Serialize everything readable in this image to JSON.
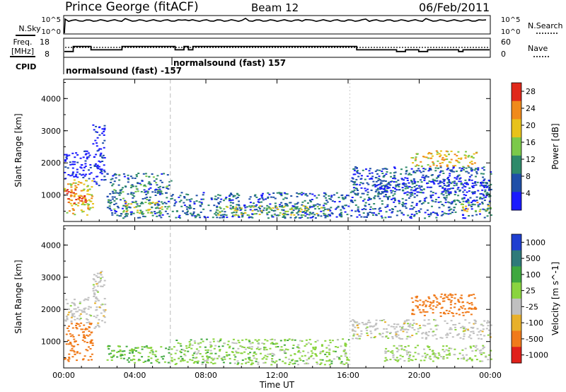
{
  "header": {
    "title": "Prince George (fitACF)",
    "beam": "Beam 12",
    "date": "06/Feb/2011"
  },
  "status_panel": {
    "nsky_label": "N.Sky",
    "nsky_ticks": [
      "10^5",
      "10^0"
    ],
    "nsearch_label": "N.Search",
    "nsearch_ticks": [
      "10^5",
      "10^0"
    ],
    "freq_label_1": "Freq.",
    "freq_label_2": "[MHz]",
    "freq_ticks": [
      "18",
      "8"
    ],
    "nave_label": "Nave",
    "nave_ticks": [
      "60",
      "0"
    ],
    "cpid_label": "CPID",
    "cpid_entries": [
      "normalsound (fast) -157",
      "normalsound (fast) 157"
    ],
    "freq_mhz": [
      11,
      11,
      14,
      14,
      14,
      14,
      12,
      12,
      12,
      12,
      12,
      12,
      12,
      14,
      14,
      14,
      14,
      14,
      14,
      14,
      14,
      14,
      14,
      14,
      14,
      12,
      12,
      14,
      12,
      14,
      14,
      14,
      14,
      14,
      14,
      14,
      14,
      14,
      14,
      14,
      14,
      14,
      14,
      14,
      14,
      14,
      14,
      14,
      14,
      14,
      14,
      14,
      14,
      14,
      14,
      14,
      14,
      14,
      14,
      14,
      14,
      14,
      14,
      14,
      14,
      14,
      12,
      12,
      12,
      12,
      12,
      12,
      12,
      12,
      12,
      11,
      11,
      12,
      12,
      12,
      11,
      11,
      12,
      12,
      12,
      12,
      12,
      12,
      12,
      11,
      12,
      12,
      12,
      12,
      12,
      12
    ]
  },
  "chart_data": [
    {
      "type": "heatmap",
      "title": "",
      "xlabel": "",
      "ylabel": "Slant Range [km]",
      "x_ticks": [
        "00:00",
        "04:00",
        "08:00",
        "12:00",
        "16:00",
        "20:00",
        "00:00"
      ],
      "y_ticks": [
        "1000",
        "2000",
        "3000",
        "4000"
      ],
      "xlim": [
        0,
        24
      ],
      "ylim": [
        180,
        4600
      ],
      "colorbar_label": "Power [dB]",
      "colorbar_ticks": [
        "4",
        "8",
        "12",
        "16",
        "20",
        "24",
        "28"
      ],
      "colorbar_range": [
        0,
        30
      ],
      "colors": [
        "#1a1aff",
        "#1f4fa8",
        "#2e8a6a",
        "#7bc94a",
        "#e8c21a",
        "#f08a1a",
        "#e0281a"
      ],
      "regions": [
        {
          "t0": 0.0,
          "t1": 1.6,
          "r0": 400,
          "r1": 1500,
          "value": 20
        },
        {
          "t0": 0.1,
          "t1": 1.2,
          "r0": 700,
          "r1": 1200,
          "value": 27
        },
        {
          "t0": 0.0,
          "t1": 1.5,
          "r0": 1500,
          "r1": 2400,
          "value": 4
        },
        {
          "t0": 1.6,
          "t1": 2.3,
          "r0": 1300,
          "r1": 3200,
          "value": 4
        },
        {
          "t0": 2.4,
          "t1": 6.0,
          "r0": 300,
          "r1": 1700,
          "value": 10
        },
        {
          "t0": 3.2,
          "t1": 5.5,
          "r0": 450,
          "r1": 800,
          "value": 18
        },
        {
          "t0": 6.0,
          "t1": 16.0,
          "r0": 300,
          "r1": 1100,
          "value": 9
        },
        {
          "t0": 8.5,
          "t1": 15.0,
          "r0": 380,
          "r1": 700,
          "value": 16
        },
        {
          "t0": 16.1,
          "t1": 24.0,
          "r0": 300,
          "r1": 1900,
          "value": 8
        },
        {
          "t0": 17.5,
          "t1": 24.0,
          "r0": 1100,
          "r1": 1500,
          "value": 6
        },
        {
          "t0": 19.5,
          "t1": 23.2,
          "r0": 1900,
          "r1": 2400,
          "value": 20
        },
        {
          "t0": 22.3,
          "t1": 24.0,
          "r0": 500,
          "r1": 800,
          "value": 18
        }
      ]
    },
    {
      "type": "heatmap",
      "title": "",
      "xlabel": "Time UT",
      "ylabel": "Slant Range [km]",
      "x_ticks": [
        "00:00",
        "04:00",
        "08:00",
        "12:00",
        "16:00",
        "20:00",
        "00:00"
      ],
      "y_ticks": [
        "1000",
        "2000",
        "3000",
        "4000"
      ],
      "xlim": [
        0,
        24
      ],
      "ylim": [
        180,
        4600
      ],
      "colorbar_label": "Velocity [m s^-1]",
      "colorbar_ticks": [
        "1000",
        "500",
        "100",
        "25",
        "-25",
        "-100",
        "-500",
        "-1000"
      ],
      "colors": [
        "#1f3fd0",
        "#2f7a7a",
        "#3fa83f",
        "#8ad43f",
        "#c0c0c0",
        "#e8b02a",
        "#f07a1a",
        "#e0201a"
      ],
      "regions": [
        {
          "t0": 0.0,
          "t1": 1.6,
          "r0": 400,
          "r1": 1600,
          "value": -300
        },
        {
          "t0": 0.0,
          "t1": 1.5,
          "r0": 1600,
          "r1": 2400,
          "value": 0
        },
        {
          "t0": 1.6,
          "t1": 2.3,
          "r0": 1300,
          "r1": 3200,
          "value": 0
        },
        {
          "t0": 2.4,
          "t1": 6.0,
          "r0": 350,
          "r1": 900,
          "value": 60
        },
        {
          "t0": 6.0,
          "t1": 16.0,
          "r0": 300,
          "r1": 1100,
          "value": 40
        },
        {
          "t0": 16.1,
          "t1": 24.0,
          "r0": 1100,
          "r1": 1700,
          "value": 0
        },
        {
          "t0": 19.5,
          "t1": 23.2,
          "r0": 1800,
          "r1": 2500,
          "value": -400
        },
        {
          "t0": 18.0,
          "t1": 24.0,
          "r0": 400,
          "r1": 900,
          "value": 30
        }
      ]
    }
  ]
}
